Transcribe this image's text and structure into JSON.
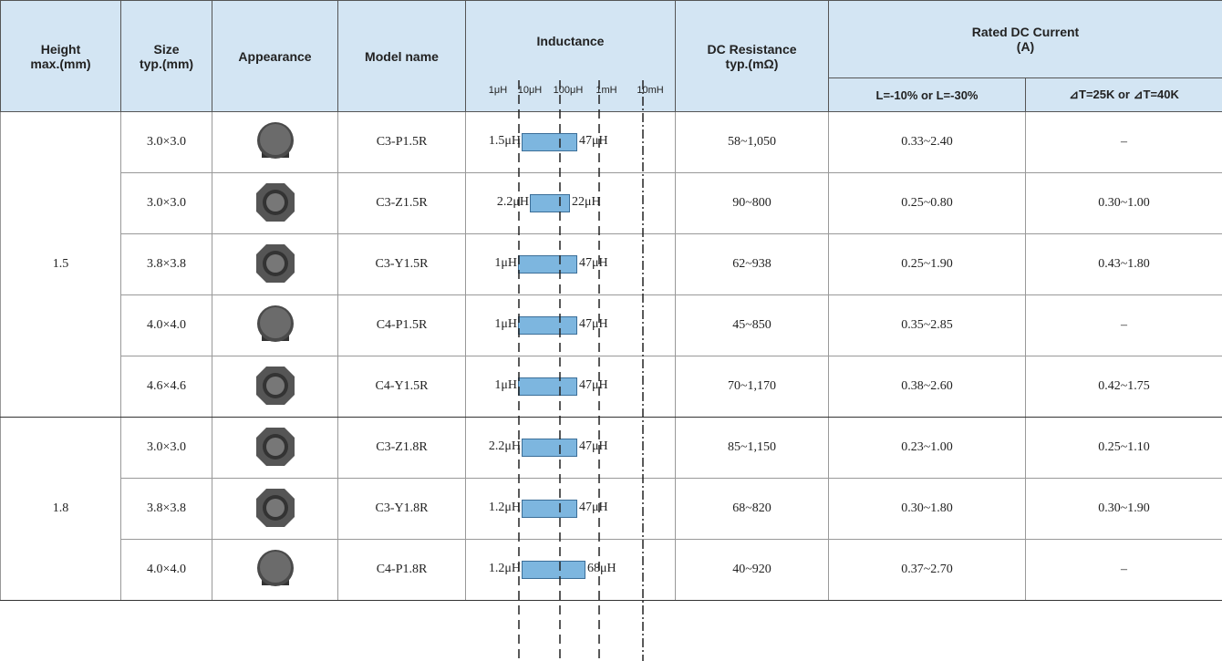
{
  "header": {
    "height": "Height\nmax.(mm)",
    "size": "Size\ntyp.(mm)",
    "appearance": "Appearance",
    "model": "Model name",
    "inductance": "Inductance",
    "scale": [
      "1μH",
      "10μH",
      "100μH",
      "1mH",
      "10mH"
    ],
    "dcr": "DC Resistance\ntyp.(mΩ)",
    "rated": "Rated DC Current\n(A)",
    "rated_sub": [
      "L=-10% or L=-30%",
      "⊿T=25K or ⊿T=40K"
    ]
  },
  "groups": [
    {
      "height": "1.5",
      "rows": [
        {
          "size": "3.0×3.0",
          "model": "C3-P1.5R",
          "ind_min": "1.5μH",
          "ind_max": "47μH",
          "dcr": "58~1,050",
          "current_l": "0.33~2.40",
          "current_t": "–"
        },
        {
          "size": "3.0×3.0",
          "model": "C3-Z1.5R",
          "ind_min": "2.2μH",
          "ind_max": "22μH",
          "dcr": "90~800",
          "current_l": "0.25~0.80",
          "current_t": "0.30~1.00"
        },
        {
          "size": "3.8×3.8",
          "model": "C3-Y1.5R",
          "ind_min": "1μH",
          "ind_max": "47μH",
          "dcr": "62~938",
          "current_l": "0.25~1.90",
          "current_t": "0.43~1.80"
        },
        {
          "size": "4.0×4.0",
          "model": "C4-P1.5R",
          "ind_min": "1μH",
          "ind_max": "47μH",
          "dcr": "45~850",
          "current_l": "0.35~2.85",
          "current_t": "–"
        },
        {
          "size": "4.6×4.6",
          "model": "C4-Y1.5R",
          "ind_min": "1μH",
          "ind_max": "47μH",
          "dcr": "70~1,170",
          "current_l": "0.38~2.60",
          "current_t": "0.42~1.75"
        }
      ]
    },
    {
      "height": "1.8",
      "rows": [
        {
          "size": "3.0×3.0",
          "model": "C3-Z1.8R",
          "ind_min": "2.2μH",
          "ind_max": "47μH",
          "dcr": "85~1,150",
          "current_l": "0.23~1.00",
          "current_t": "0.25~1.10"
        },
        {
          "size": "3.8×3.8",
          "model": "C3-Y1.8R",
          "ind_min": "1.2μH",
          "ind_max": "47μH",
          "dcr": "68~820",
          "current_l": "0.30~1.80",
          "current_t": "0.30~1.90"
        },
        {
          "size": "4.0×4.0",
          "model": "C4-P1.8R",
          "ind_min": "1.2μH",
          "ind_max": "68μH",
          "dcr": "40~920",
          "current_l": "0.37~2.70",
          "current_t": "–"
        }
      ]
    }
  ]
}
